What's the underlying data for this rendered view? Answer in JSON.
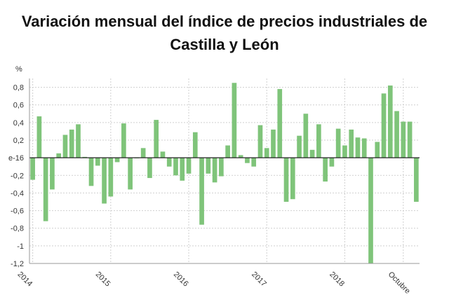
{
  "title_line1": "Variación mensual del índice de precios industriales de",
  "title_line2": "Castilla y León",
  "chart_data": {
    "type": "bar",
    "title": "Variación mensual del índice de precios industriales de Castilla y León",
    "ylabel": "%",
    "ylim": [
      -1.2,
      0.9
    ],
    "grid": true,
    "bar_color": "#7fc47a",
    "y_ticks": [
      "0,8",
      "0,6",
      "0,4",
      "0,2",
      "e-16",
      "-0,2",
      "-0,4",
      "-0,6",
      "-0,8",
      "-1",
      "-1,2"
    ],
    "y_tick_values": [
      0.8,
      0.6,
      0.4,
      0.2,
      0,
      -0.2,
      -0.4,
      -0.6,
      -0.8,
      -1,
      -1.2
    ],
    "x_ticks": [
      "2014",
      "2015",
      "2016",
      "2017",
      "2018",
      "Octubre"
    ],
    "x_tick_index": [
      0.5,
      12.5,
      24.5,
      36.5,
      48.5,
      57.5
    ],
    "series": [
      {
        "values": [
          -0.25,
          0.47,
          -0.72,
          -0.36,
          0.05,
          0.26,
          0.32,
          0.38,
          0.01,
          -0.32,
          -0.09,
          -0.52,
          -0.44,
          -0.05,
          0.39,
          -0.36,
          0.0,
          0.11,
          -0.23,
          0.43,
          0.07,
          -0.1,
          -0.2,
          -0.26,
          -0.18,
          0.29,
          -0.76,
          -0.18,
          -0.28,
          -0.21,
          0.14,
          0.85,
          0.03,
          -0.06,
          -0.1,
          0.37,
          0.11,
          0.32,
          0.78,
          -0.5,
          -0.47,
          0.25,
          0.5,
          0.09,
          0.38,
          -0.27,
          -0.1,
          0.33,
          0.14,
          0.32,
          0.23,
          0.22,
          -1.2,
          0.18,
          0.73,
          0.82,
          0.53,
          0.41,
          0.41,
          -0.5
        ]
      }
    ]
  }
}
